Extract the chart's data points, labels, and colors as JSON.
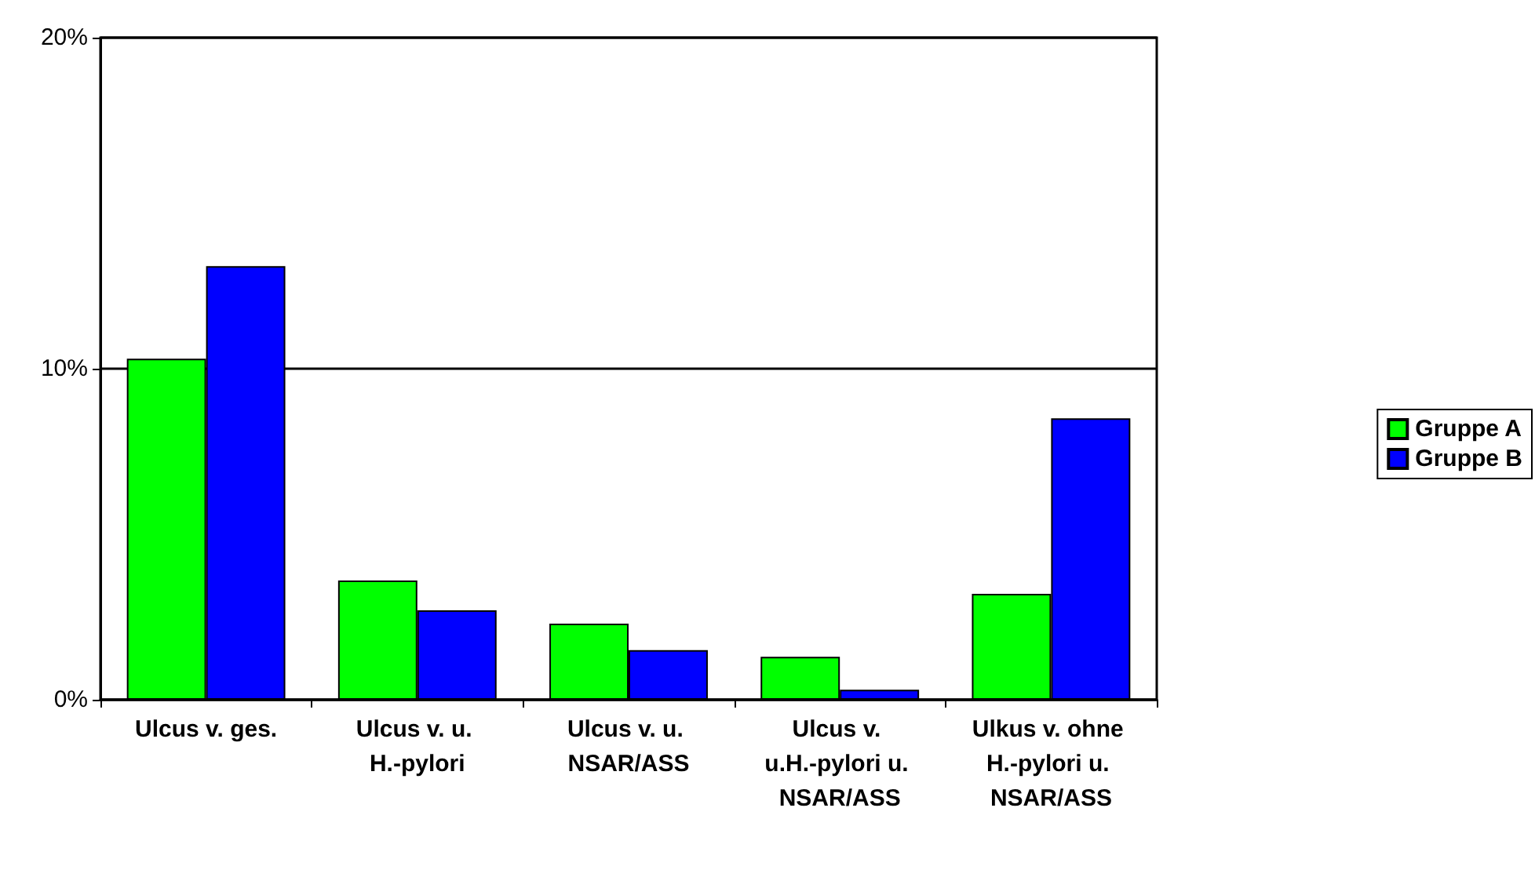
{
  "chart_data": {
    "type": "bar",
    "categories": [
      "Ulcus v. ges.",
      "Ulcus v. u. H.-pylori",
      "Ulcus v. u. NSAR/ASS",
      "Ulcus v. u.H.-pylori u. NSAR/ASS",
      "Ulkus v. ohne H.-pylori u. NSAR/ASS"
    ],
    "series": [
      {
        "name": "Gruppe A",
        "color": "#00ff00",
        "values": [
          10.3,
          3.6,
          2.3,
          1.3,
          3.2
        ]
      },
      {
        "name": "Gruppe B",
        "color": "#0000ff",
        "values": [
          13.1,
          2.7,
          1.5,
          0.3,
          8.5
        ]
      }
    ],
    "ylim": [
      0,
      20
    ],
    "yticks": [
      {
        "value": 0,
        "label": "0%"
      },
      {
        "value": 10,
        "label": "10%"
      },
      {
        "value": 20,
        "label": "20%"
      }
    ],
    "grid": "y",
    "legend": "right"
  }
}
